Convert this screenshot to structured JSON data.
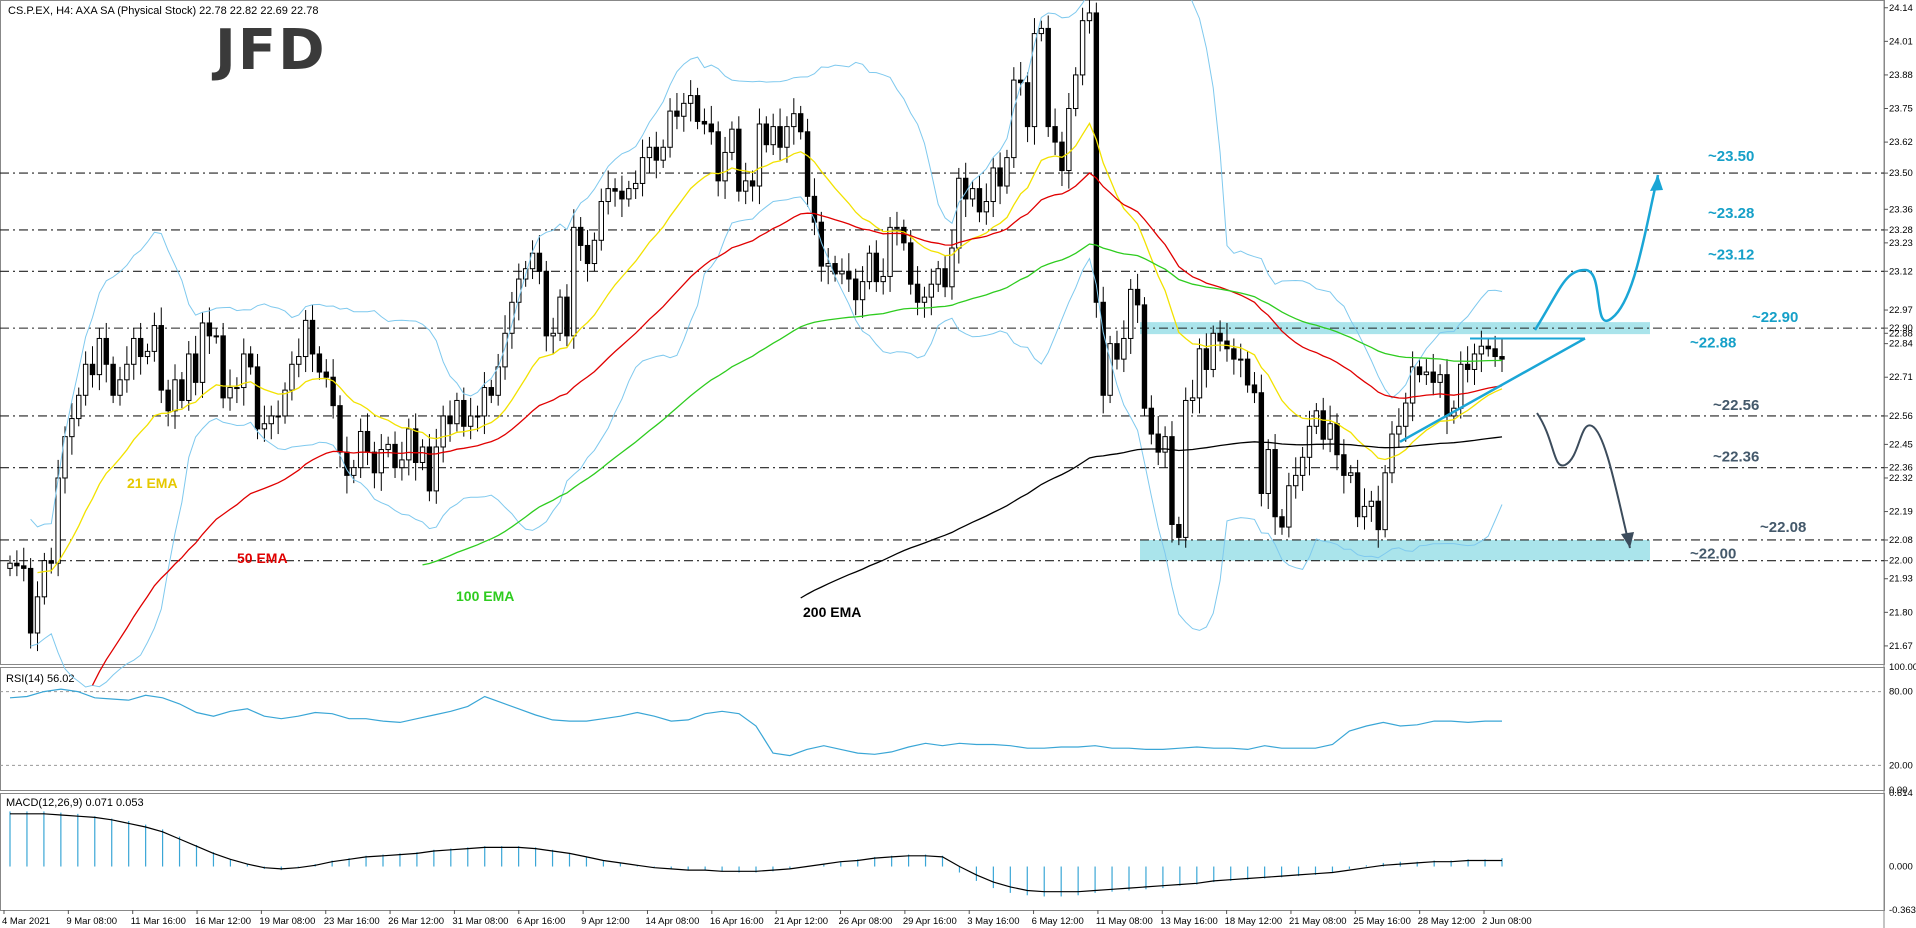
{
  "header": {
    "main": "CS.P.EX, H4:  AXA SA (Physical Stock)  22.78 22.82 22.69 22.78",
    "rsi": "RSI(14) 56.02",
    "macd": "MACD(12,26,9) 0.071 0.053"
  },
  "logo_text": "JFD",
  "colors": {
    "ema21": "#f2e200",
    "ema50": "#e00000",
    "ema100": "#2ecc1f",
    "ema200": "#000000",
    "bollinger": "#7fc9ee",
    "zone": "#7dd6e0",
    "level_label": "#16a0c8",
    "bull_arrow": "#1aa6d6",
    "bear_arrow": "#3c4c5c",
    "rsi_line": "#3aa6d6",
    "macd_hist": "#3aa6d6",
    "macd_signal": "#000000"
  },
  "chart_data": {
    "type": "candlestick",
    "instrument": "CS.P.EX",
    "timeframe": "H4",
    "description": "AXA SA (Physical Stock)",
    "ohlc": {
      "open": 22.78,
      "high": 22.82,
      "low": 22.69,
      "close": 22.78
    },
    "price_axis_ticks": [
      24.14,
      24.01,
      23.88,
      23.75,
      23.62,
      23.5,
      23.36,
      23.28,
      23.23,
      23.12,
      22.97,
      22.9,
      22.88,
      22.84,
      22.71,
      22.56,
      22.45,
      22.36,
      22.32,
      22.19,
      22.08,
      22.0,
      21.93,
      21.8,
      21.67
    ],
    "ylim": [
      21.6,
      24.17
    ],
    "x_tick_labels": [
      "4 Mar 2021",
      "9 Mar 08:00",
      "11 Mar 16:00",
      "16 Mar 12:00",
      "19 Mar 08:00",
      "23 Mar 16:00",
      "26 Mar 12:00",
      "31 Mar 08:00",
      "6 Apr 16:00",
      "9 Apr 12:00",
      "14 Apr 08:00",
      "16 Apr 16:00",
      "21 Apr 12:00",
      "26 Apr 08:00",
      "29 Apr 16:00",
      "3 May 16:00",
      "6 May 12:00",
      "11 May 08:00",
      "13 May 16:00",
      "18 May 12:00",
      "21 May 08:00",
      "25 May 16:00",
      "28 May 12:00",
      "2 Jun 08:00"
    ],
    "levels": [
      {
        "label": "~23.50",
        "value": 23.5
      },
      {
        "label": "~23.28",
        "value": 23.28
      },
      {
        "label": "~23.12",
        "value": 23.12
      },
      {
        "label": "~22.90",
        "value": 22.9
      },
      {
        "label": "~22.88",
        "value": 22.88
      },
      {
        "label": "~22.56",
        "value": 22.56
      },
      {
        "label": "~22.36",
        "value": 22.36
      },
      {
        "label": "~22.08",
        "value": 22.08
      },
      {
        "label": "~22.00",
        "value": 22.0
      }
    ],
    "zones": [
      {
        "from": 22.88,
        "to": 22.9
      },
      {
        "from": 22.0,
        "to": 22.08
      }
    ],
    "ema_labels": [
      {
        "name": "21 EMA"
      },
      {
        "name": "50 EMA"
      },
      {
        "name": "100 EMA"
      },
      {
        "name": "200 EMA"
      }
    ],
    "closes": [
      21.99,
      21.98,
      21.97,
      21.72,
      21.86,
      22.0,
      21.99,
      22.32,
      22.48,
      22.55,
      22.64,
      22.76,
      22.72,
      22.86,
      22.76,
      22.64,
      22.7,
      22.76,
      22.86,
      22.79,
      22.81,
      22.91,
      22.66,
      22.58,
      22.7,
      22.62,
      22.8,
      22.69,
      22.92,
      22.87,
      22.87,
      22.63,
      22.67,
      22.67,
      22.8,
      22.75,
      22.51,
      22.53,
      22.56,
      22.56,
      22.66,
      22.76,
      22.79,
      22.93,
      22.8,
      22.73,
      22.71,
      22.6,
      22.42,
      22.33,
      22.36,
      22.5,
      22.42,
      22.34,
      22.43,
      22.45,
      22.36,
      22.39,
      22.51,
      22.38,
      22.44,
      22.27,
      22.44,
      22.56,
      22.53,
      22.62,
      22.52,
      22.56,
      22.56,
      22.67,
      22.64,
      22.75,
      22.88,
      23.0,
      23.09,
      23.13,
      23.19,
      23.12,
      22.87,
      22.88,
      23.02,
      22.87,
      23.29,
      23.22,
      23.15,
      23.24,
      23.39,
      23.44,
      23.43,
      23.4,
      23.44,
      23.46,
      23.56,
      23.6,
      23.55,
      23.6,
      23.74,
      23.72,
      23.77,
      23.8,
      23.7,
      23.69,
      23.66,
      23.47,
      23.58,
      23.67,
      23.43,
      23.47,
      23.45,
      23.69,
      23.61,
      23.68,
      23.6,
      23.68,
      23.73,
      23.66,
      23.41,
      23.31,
      23.14,
      23.15,
      23.11,
      23.12,
      23.09,
      23.01,
      23.08,
      23.19,
      23.08,
      23.1,
      23.29,
      23.29,
      23.23,
      23.07,
      23.0,
      23.02,
      23.07,
      23.13,
      23.06,
      23.21,
      23.48,
      23.4,
      23.44,
      23.35,
      23.39,
      23.52,
      23.45,
      23.56,
      23.86,
      23.85,
      23.68,
      24.04,
      24.06,
      23.68,
      23.62,
      23.51,
      23.75,
      23.88,
      24.09,
      24.12,
      23.0,
      22.64,
      22.84,
      22.78,
      22.86,
      23.05,
      22.99,
      22.59,
      22.49,
      22.42,
      22.48,
      22.14,
      22.09,
      22.62,
      22.63,
      22.82,
      22.74,
      22.88,
      22.85,
      22.82,
      22.78,
      22.78,
      22.68,
      22.65,
      22.26,
      22.43,
      22.17,
      22.13,
      22.29,
      22.33,
      22.4,
      22.52,
      22.58,
      22.47,
      22.53,
      22.41,
      22.33,
      22.34,
      22.17,
      22.21,
      22.23,
      22.12,
      22.34,
      22.49,
      22.52,
      22.61,
      22.75,
      22.72,
      22.73,
      22.69,
      22.72,
      22.56,
      22.59,
      22.76,
      22.74,
      22.8,
      22.83,
      22.82,
      22.79,
      22.78
    ],
    "rsi": {
      "name": "RSI(14)",
      "value": 56.02,
      "levels": [
        80,
        20
      ],
      "ticks": [
        100.0,
        80.0,
        20.0,
        0.0
      ],
      "values": [
        75,
        76,
        80,
        82,
        80,
        75,
        74,
        73,
        77,
        75,
        70,
        63,
        60,
        64,
        66,
        60,
        58,
        60,
        63,
        62,
        58,
        58,
        56,
        55,
        58,
        61,
        64,
        68,
        76,
        71,
        66,
        61,
        57,
        56,
        56,
        58,
        60,
        63,
        60,
        56,
        57,
        62,
        64,
        62,
        52,
        30,
        28,
        33,
        36,
        33,
        30,
        29,
        31,
        35,
        38,
        36,
        38,
        37,
        37,
        36,
        34,
        34,
        35,
        35,
        36,
        34,
        34,
        33,
        33,
        34,
        35,
        34,
        34,
        33,
        36,
        34,
        34,
        34,
        37,
        48,
        52,
        55,
        52,
        53,
        56,
        56,
        55,
        56,
        56
      ]
    },
    "macd": {
      "name": "MACD(12,26,9)",
      "main": 0.071,
      "signal": 0.053,
      "ticks": [
        0.614,
        0.0,
        -0.363
      ],
      "hist": [
        0.46,
        0.46,
        0.46,
        0.45,
        0.44,
        0.42,
        0.4,
        0.38,
        0.35,
        0.31,
        0.25,
        0.18,
        0.12,
        0.06,
        0.02,
        -0.02,
        -0.03,
        -0.01,
        0.02,
        0.05,
        0.07,
        0.09,
        0.1,
        0.11,
        0.12,
        0.14,
        0.15,
        0.16,
        0.17,
        0.17,
        0.17,
        0.16,
        0.14,
        0.11,
        0.08,
        0.05,
        0.03,
        0.01,
        -0.01,
        -0.02,
        -0.03,
        -0.03,
        -0.04,
        -0.05,
        -0.05,
        -0.04,
        -0.02,
        0.0,
        0.02,
        0.04,
        0.06,
        0.08,
        0.09,
        0.1,
        0.1,
        0.09,
        -0.05,
        -0.12,
        -0.18,
        -0.22,
        -0.24,
        -0.25,
        -0.25,
        -0.24,
        -0.22,
        -0.21,
        -0.2,
        -0.19,
        -0.18,
        -0.16,
        -0.15,
        -0.13,
        -0.12,
        -0.11,
        -0.1,
        -0.09,
        -0.08,
        -0.07,
        -0.05,
        -0.02,
        0.01,
        0.03,
        0.04,
        0.04,
        0.05,
        0.05,
        0.06,
        0.06,
        0.07
      ],
      "signal_line": [
        0.44,
        0.44,
        0.44,
        0.43,
        0.42,
        0.41,
        0.39,
        0.36,
        0.33,
        0.29,
        0.23,
        0.17,
        0.11,
        0.06,
        0.02,
        -0.01,
        -0.02,
        -0.01,
        0.01,
        0.04,
        0.06,
        0.08,
        0.09,
        0.1,
        0.11,
        0.13,
        0.14,
        0.15,
        0.16,
        0.16,
        0.16,
        0.15,
        0.13,
        0.11,
        0.08,
        0.05,
        0.03,
        0.01,
        -0.01,
        -0.02,
        -0.03,
        -0.03,
        -0.04,
        -0.04,
        -0.04,
        -0.03,
        -0.02,
        0.0,
        0.02,
        0.04,
        0.05,
        0.07,
        0.08,
        0.09,
        0.09,
        0.08,
        0.0,
        -0.07,
        -0.13,
        -0.17,
        -0.2,
        -0.21,
        -0.21,
        -0.21,
        -0.2,
        -0.19,
        -0.18,
        -0.17,
        -0.16,
        -0.15,
        -0.14,
        -0.12,
        -0.11,
        -0.1,
        -0.09,
        -0.08,
        -0.07,
        -0.06,
        -0.05,
        -0.03,
        -0.01,
        0.01,
        0.02,
        0.03,
        0.04,
        0.04,
        0.05,
        0.05,
        0.05
      ]
    }
  }
}
